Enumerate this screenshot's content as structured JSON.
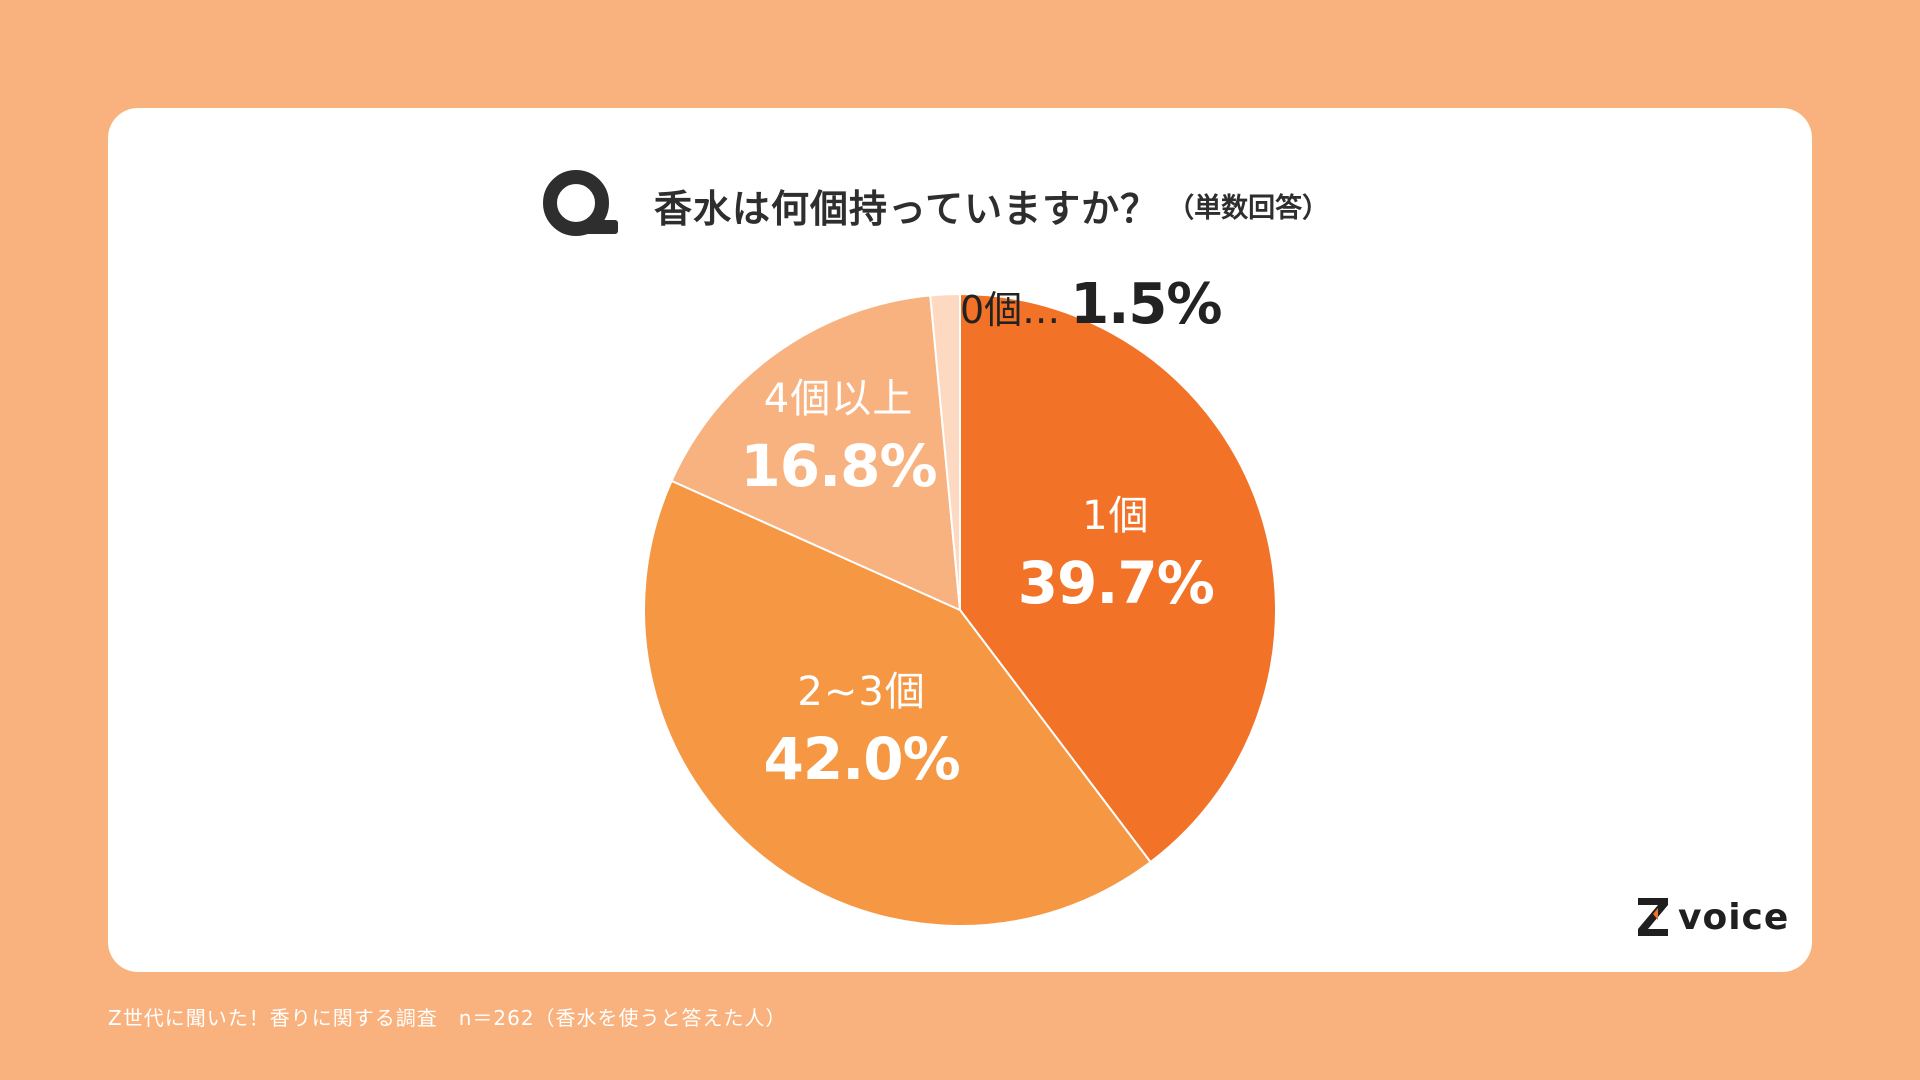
{
  "header": {
    "q_letter": "Q",
    "question": "香水は何個持っていますか？",
    "note": "（単数回答）"
  },
  "chart_data": {
    "type": "pie",
    "categories": [
      "1個",
      "2~3個",
      "4個以上",
      "0個…"
    ],
    "values": [
      39.7,
      42.0,
      16.8,
      1.5
    ],
    "value_labels": [
      "39.7%",
      "42.0%",
      "16.8%",
      "1.5%"
    ],
    "colors": [
      "#F27227",
      "#F59743",
      "#F8B27F",
      "#FDD9C2"
    ],
    "start": "12 o'clock",
    "direction": "clockwise",
    "legend": "none"
  },
  "brand": {
    "z_letter": "Z",
    "name": "voice"
  },
  "footer": {
    "text": "Z世代に聞いた！香りに関する調査　n＝262（香水を使うと答えた人）"
  },
  "colors": {
    "page_background": "#F9B27D",
    "card_background": "#FFFFFF",
    "text_dark": "#2E2E2E"
  }
}
